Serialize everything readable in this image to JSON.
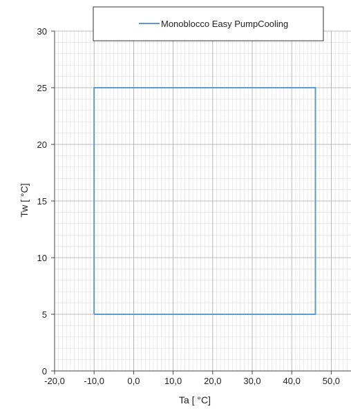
{
  "chart_data": {
    "type": "line",
    "xlabel": "Ta [ °C]",
    "ylabel": "Tw [ °C]",
    "xlim": [
      -20,
      55
    ],
    "ylim": [
      0,
      30
    ],
    "x_ticks": [
      "-20,0",
      "-10,0",
      "0,0",
      "10,0",
      "20,0",
      "30,0",
      "40,0",
      "50,0"
    ],
    "x_tick_values": [
      -20,
      -10,
      0,
      10,
      20,
      30,
      40,
      50
    ],
    "y_ticks": [
      "0",
      "5",
      "10",
      "15",
      "20",
      "25",
      "30"
    ],
    "y_tick_values": [
      0,
      5,
      10,
      15,
      20,
      25,
      30
    ],
    "grid": true,
    "legend_position": "top-center",
    "series": [
      {
        "name": "Monoblocco Easy PumpCooling",
        "color": "#5b9bd5",
        "x": [
          -10,
          46,
          46,
          -10,
          -10
        ],
        "y": [
          5,
          5,
          25,
          25,
          5
        ]
      }
    ]
  }
}
